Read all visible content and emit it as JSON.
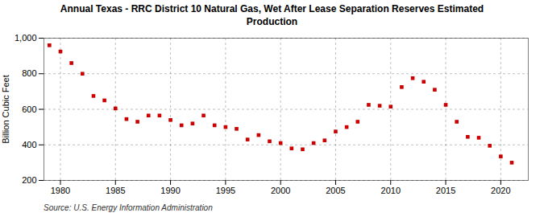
{
  "chart_data": {
    "type": "scatter",
    "title": "Annual Texas - RRC District 10 Natural Gas, Wet After Lease Separation Reserves Estimated\nProduction",
    "ylabel": "Billion Cubic Feet",
    "source": "Source: U.S. Energy Information Administration",
    "x": [
      1979,
      1980,
      1981,
      1982,
      1983,
      1984,
      1985,
      1986,
      1987,
      1988,
      1989,
      1990,
      1991,
      1992,
      1993,
      1994,
      1995,
      1996,
      1997,
      1998,
      1999,
      2000,
      2001,
      2002,
      2003,
      2004,
      2005,
      2006,
      2007,
      2008,
      2009,
      2010,
      2011,
      2012,
      2013,
      2014,
      2015,
      2016,
      2017,
      2018,
      2019,
      2020,
      2021
    ],
    "values": [
      960,
      925,
      860,
      800,
      675,
      650,
      605,
      545,
      530,
      565,
      565,
      540,
      510,
      520,
      565,
      510,
      500,
      490,
      430,
      455,
      420,
      410,
      380,
      375,
      410,
      425,
      475,
      500,
      530,
      625,
      620,
      615,
      725,
      775,
      755,
      710,
      625,
      530,
      445,
      440,
      395,
      335,
      300
    ],
    "color": "#cc0000",
    "marker": "square",
    "xlim": [
      1978.5,
      2022.5
    ],
    "xticks": [
      1980,
      1985,
      1990,
      1995,
      2000,
      2005,
      2010,
      2015,
      2020
    ],
    "ylim": [
      200,
      1000
    ],
    "yticks": [
      200,
      400,
      600,
      800,
      {
        "value": 1000,
        "label": "1,000"
      }
    ],
    "grid": true
  }
}
